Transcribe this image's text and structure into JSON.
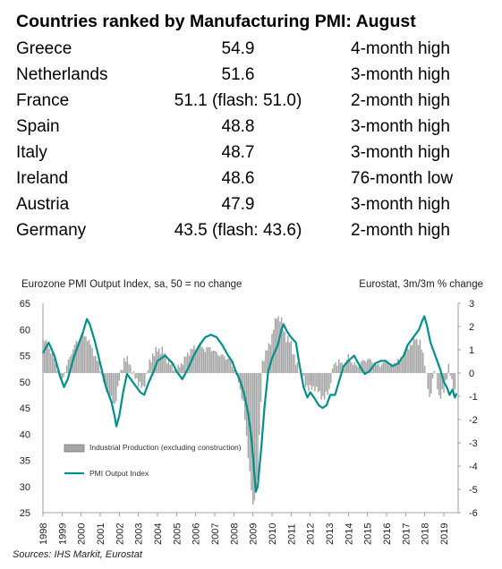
{
  "table": {
    "title": "Countries ranked by Manufacturing PMI: August",
    "rows": [
      {
        "country": "Greece",
        "value": "54.9",
        "note": "4-month high"
      },
      {
        "country": "Netherlands",
        "value": "51.6",
        "note": "3-month high"
      },
      {
        "country": "France",
        "value": "51.1 (flash: 51.0)",
        "note": "2-month high"
      },
      {
        "country": "Spain",
        "value": "48.8",
        "note": "3-month high"
      },
      {
        "country": "Italy",
        "value": "48.7",
        "note": "3-month high"
      },
      {
        "country": "Ireland",
        "value": "48.6",
        "note": "76-month low"
      },
      {
        "country": "Austria",
        "value": "47.9",
        "note": "3-month high"
      },
      {
        "country": "Germany",
        "value": "43.5 (flash: 43.6)",
        "note": "2-month high"
      }
    ]
  },
  "source": "Sources: IHS Markit, Eurostat",
  "colors": {
    "line": "#00918a",
    "bars": "#a6a6a6",
    "bar_edge": "#8c8c8c"
  },
  "chart_data": {
    "type": "bar+line",
    "left_axis_title": "Eurozone PMI Output  Index, sa, 50 = no change",
    "right_axis_title": "Eurostat, 3m/3m  % change",
    "left_ylim": [
      25,
      65
    ],
    "left_ticks": [
      25,
      30,
      35,
      40,
      45,
      50,
      55,
      60,
      65
    ],
    "right_ylim": [
      -6,
      3
    ],
    "right_ticks": [
      -6,
      -5,
      -4,
      -3,
      -2,
      -1,
      0,
      1,
      2,
      3
    ],
    "x_ticks": [
      "1998",
      "1999",
      "2000",
      "2001",
      "2002",
      "2003",
      "2004",
      "2005",
      "2006",
      "2007",
      "2008",
      "2009",
      "2010",
      "2011",
      "2012",
      "2013",
      "2014",
      "2015",
      "2016",
      "2017",
      "2018",
      "2019"
    ],
    "x_range": [
      1998.0,
      2019.75
    ],
    "legend": [
      "Industrial Production (excluding construction)",
      "PMI Output Index"
    ],
    "legend_position": "lower-left",
    "pmi_output_index": {
      "axis": "left",
      "points": [
        [
          1998.0,
          55.5
        ],
        [
          1998.3,
          57.5
        ],
        [
          1998.6,
          55.0
        ],
        [
          1998.9,
          51.0
        ],
        [
          1999.1,
          49.0
        ],
        [
          1999.3,
          50.5
        ],
        [
          1999.6,
          54.5
        ],
        [
          1999.9,
          57.5
        ],
        [
          2000.1,
          59.5
        ],
        [
          2000.3,
          62.0
        ],
        [
          2000.45,
          61.0
        ],
        [
          2000.7,
          58.0
        ],
        [
          2000.9,
          55.0
        ],
        [
          2001.1,
          52.0
        ],
        [
          2001.3,
          49.0
        ],
        [
          2001.6,
          46.0
        ],
        [
          2001.75,
          43.5
        ],
        [
          2001.85,
          41.5
        ],
        [
          2002.0,
          43.5
        ],
        [
          2002.2,
          48.0
        ],
        [
          2002.4,
          51.5
        ],
        [
          2002.6,
          50.5
        ],
        [
          2002.9,
          49.0
        ],
        [
          2003.1,
          48.0
        ],
        [
          2003.3,
          47.5
        ],
        [
          2003.5,
          49.5
        ],
        [
          2003.8,
          52.0
        ],
        [
          2004.0,
          54.0
        ],
        [
          2004.4,
          55.0
        ],
        [
          2004.8,
          53.5
        ],
        [
          2005.0,
          52.0
        ],
        [
          2005.3,
          50.5
        ],
        [
          2005.6,
          52.5
        ],
        [
          2005.9,
          55.0
        ],
        [
          2006.2,
          57.0
        ],
        [
          2006.5,
          58.5
        ],
        [
          2006.8,
          59.0
        ],
        [
          2007.1,
          58.5
        ],
        [
          2007.4,
          57.0
        ],
        [
          2007.7,
          55.0
        ],
        [
          2007.9,
          54.0
        ],
        [
          2008.1,
          52.0
        ],
        [
          2008.35,
          50.0
        ],
        [
          2008.55,
          47.5
        ],
        [
          2008.75,
          44.0
        ],
        [
          2008.9,
          40.0
        ],
        [
          2009.0,
          36.0
        ],
        [
          2009.08,
          32.0
        ],
        [
          2009.15,
          29.0
        ],
        [
          2009.25,
          30.0
        ],
        [
          2009.45,
          38.0
        ],
        [
          2009.6,
          45.0
        ],
        [
          2009.8,
          52.0
        ],
        [
          2010.0,
          54.5
        ],
        [
          2010.3,
          57.0
        ],
        [
          2010.5,
          60.0
        ],
        [
          2010.6,
          61.0
        ],
        [
          2010.8,
          59.5
        ],
        [
          2011.0,
          58.5
        ],
        [
          2011.25,
          57.5
        ],
        [
          2011.45,
          53.0
        ],
        [
          2011.65,
          49.0
        ],
        [
          2011.85,
          47.0
        ],
        [
          2012.0,
          48.0
        ],
        [
          2012.2,
          47.0
        ],
        [
          2012.45,
          45.5
        ],
        [
          2012.65,
          45.0
        ],
        [
          2012.85,
          45.5
        ],
        [
          2013.05,
          47.5
        ],
        [
          2013.3,
          47.5
        ],
        [
          2013.5,
          50.0
        ],
        [
          2013.75,
          53.0
        ],
        [
          2014.0,
          54.0
        ],
        [
          2014.3,
          55.0
        ],
        [
          2014.6,
          53.0
        ],
        [
          2014.85,
          51.5
        ],
        [
          2015.1,
          52.0
        ],
        [
          2015.4,
          53.5
        ],
        [
          2015.7,
          54.0
        ],
        [
          2015.95,
          54.0
        ],
        [
          2016.3,
          53.0
        ],
        [
          2016.6,
          53.5
        ],
        [
          2016.9,
          55.0
        ],
        [
          2017.1,
          57.0
        ],
        [
          2017.4,
          58.5
        ],
        [
          2017.7,
          60.0
        ],
        [
          2017.85,
          61.5
        ],
        [
          2017.98,
          62.5
        ],
        [
          2018.1,
          61.0
        ],
        [
          2018.3,
          57.5
        ],
        [
          2018.55,
          55.0
        ],
        [
          2018.8,
          52.5
        ],
        [
          2019.0,
          50.0
        ],
        [
          2019.15,
          49.0
        ],
        [
          2019.3,
          47.5
        ],
        [
          2019.45,
          48.5
        ],
        [
          2019.58,
          47.0
        ],
        [
          2019.67,
          47.8
        ]
      ]
    },
    "industrial_production": {
      "axis": "right",
      "points": [
        [
          1998.0,
          1.5
        ],
        [
          1998.25,
          1.2
        ],
        [
          1998.5,
          0.8
        ],
        [
          1998.75,
          0.2
        ],
        [
          1999.0,
          -0.3
        ],
        [
          1999.25,
          0.3
        ],
        [
          1999.5,
          0.9
        ],
        [
          1999.75,
          1.3
        ],
        [
          2000.0,
          1.6
        ],
        [
          2000.25,
          1.6
        ],
        [
          2000.5,
          1.2
        ],
        [
          2000.75,
          0.7
        ],
        [
          2001.0,
          0.2
        ],
        [
          2001.25,
          -0.6
        ],
        [
          2001.5,
          -1.0
        ],
        [
          2001.75,
          -1.4
        ],
        [
          2002.0,
          -0.3
        ],
        [
          2002.25,
          0.6
        ],
        [
          2002.5,
          0.5
        ],
        [
          2002.75,
          -0.1
        ],
        [
          2003.0,
          -0.4
        ],
        [
          2003.25,
          -0.7
        ],
        [
          2003.5,
          0.2
        ],
        [
          2003.75,
          0.8
        ],
        [
          2004.0,
          1.0
        ],
        [
          2004.25,
          1.0
        ],
        [
          2004.5,
          0.6
        ],
        [
          2004.75,
          0.3
        ],
        [
          2005.0,
          0.1
        ],
        [
          2005.25,
          0.4
        ],
        [
          2005.5,
          0.7
        ],
        [
          2005.75,
          1.0
        ],
        [
          2006.0,
          1.1
        ],
        [
          2006.25,
          1.2
        ],
        [
          2006.5,
          1.0
        ],
        [
          2006.75,
          1.1
        ],
        [
          2007.0,
          0.9
        ],
        [
          2007.25,
          0.8
        ],
        [
          2007.5,
          0.7
        ],
        [
          2007.75,
          0.6
        ],
        [
          2008.0,
          0.2
        ],
        [
          2008.25,
          -0.4
        ],
        [
          2008.5,
          -1.3
        ],
        [
          2008.75,
          -3.5
        ],
        [
          2009.0,
          -5.8
        ],
        [
          2009.25,
          -4.5
        ],
        [
          2009.5,
          0.5
        ],
        [
          2009.75,
          1.0
        ],
        [
          2010.0,
          1.6
        ],
        [
          2010.25,
          2.5
        ],
        [
          2010.5,
          2.2
        ],
        [
          2010.75,
          1.5
        ],
        [
          2011.0,
          1.3
        ],
        [
          2011.25,
          0.4
        ],
        [
          2011.5,
          0.1
        ],
        [
          2011.75,
          -0.5
        ],
        [
          2012.0,
          -0.7
        ],
        [
          2012.25,
          -0.6
        ],
        [
          2012.5,
          -0.9
        ],
        [
          2012.75,
          -1.1
        ],
        [
          2013.0,
          -0.7
        ],
        [
          2013.25,
          0.4
        ],
        [
          2013.5,
          0.5
        ],
        [
          2013.75,
          0.3
        ],
        [
          2014.0,
          0.7
        ],
        [
          2014.25,
          0.4
        ],
        [
          2014.5,
          0.3
        ],
        [
          2014.75,
          0.5
        ],
        [
          2015.0,
          0.6
        ],
        [
          2015.25,
          0.5
        ],
        [
          2015.5,
          0.3
        ],
        [
          2015.75,
          0.4
        ],
        [
          2016.0,
          0.5
        ],
        [
          2016.25,
          0.3
        ],
        [
          2016.5,
          0.5
        ],
        [
          2016.75,
          0.6
        ],
        [
          2017.0,
          1.0
        ],
        [
          2017.25,
          1.2
        ],
        [
          2017.5,
          1.5
        ],
        [
          2017.75,
          1.3
        ],
        [
          2018.0,
          0.5
        ],
        [
          2018.25,
          -1.2
        ],
        [
          2018.5,
          0.2
        ],
        [
          2018.75,
          -1.0
        ],
        [
          2019.0,
          -0.8
        ],
        [
          2019.25,
          0.3
        ],
        [
          2019.5,
          -0.8
        ],
        [
          2019.65,
          -0.7
        ]
      ]
    }
  }
}
